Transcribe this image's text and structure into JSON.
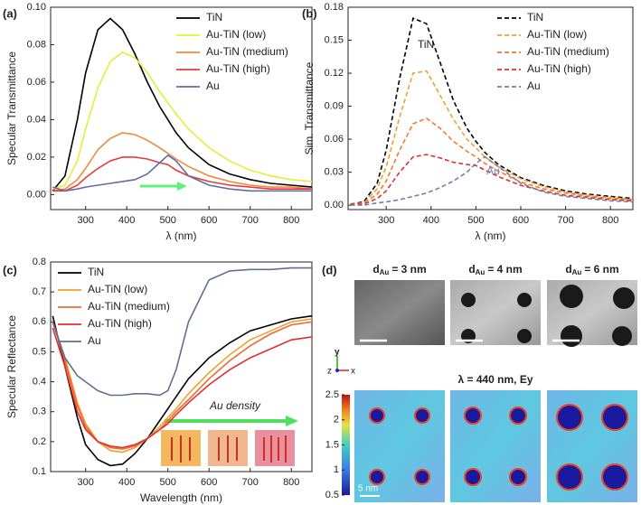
{
  "chart_data": [
    {
      "type": "line",
      "panel_label": "(a)",
      "xlabel": "λ (nm)",
      "ylabel": "Specular Transmittance",
      "line_style": "solid",
      "legend": "upper right",
      "x": [
        220,
        250,
        280,
        300,
        330,
        360,
        390,
        420,
        450,
        480,
        500,
        520,
        550,
        600,
        650,
        700,
        750,
        800,
        850
      ],
      "xlim": [
        215,
        850
      ],
      "xticks": [
        300,
        400,
        500,
        600,
        700,
        800
      ],
      "ylim": [
        -0.008,
        0.1
      ],
      "yticks": [
        {
          "value": 0,
          "label": "0.00"
        },
        0.02,
        0.04,
        0.06,
        0.08,
        {
          "value": 0.1,
          "label": "0.10"
        }
      ],
      "series": [
        {
          "name": "TiN",
          "color": "#000000",
          "values": [
            0.002,
            0.01,
            0.04,
            0.065,
            0.088,
            0.094,
            0.088,
            0.075,
            0.06,
            0.047,
            0.04,
            0.033,
            0.025,
            0.016,
            0.011,
            0.008,
            0.006,
            0.005,
            0.004
          ]
        },
        {
          "name": "Au-TiN (low)",
          "color": "#e4ee3a",
          "values": [
            0.003,
            0.005,
            0.018,
            0.035,
            0.057,
            0.071,
            0.076,
            0.073,
            0.065,
            0.055,
            0.049,
            0.043,
            0.035,
            0.025,
            0.018,
            0.013,
            0.01,
            0.008,
            0.007
          ]
        },
        {
          "name": "Au-TiN (medium)",
          "color": "#f08a3c",
          "values": [
            0.002,
            0.003,
            0.008,
            0.014,
            0.024,
            0.03,
            0.033,
            0.032,
            0.029,
            0.025,
            0.022,
            0.019,
            0.015,
            0.01,
            0.007,
            0.005,
            0.004,
            0.004,
            0.003
          ]
        },
        {
          "name": "Au-TiN (high)",
          "color": "#e83a3a",
          "values": [
            0.002,
            0.002,
            0.005,
            0.009,
            0.014,
            0.018,
            0.02,
            0.02,
            0.019,
            0.017,
            0.016,
            0.013,
            0.01,
            0.007,
            0.005,
            0.004,
            0.003,
            0.003,
            0.003
          ]
        },
        {
          "name": "Au",
          "color": "#5f6f9f",
          "values": [
            0.004,
            0.002,
            0.003,
            0.004,
            0.005,
            0.006,
            0.007,
            0.008,
            0.011,
            0.017,
            0.021,
            0.018,
            0.01,
            0.005,
            0.003,
            0.002,
            0.002,
            0.002,
            0.002
          ]
        }
      ]
    },
    {
      "type": "line",
      "panel_label": "(b)",
      "xlabel": "λ (nm)",
      "ylabel": "Sim. Transmittance",
      "line_style": "dashed",
      "legend": "upper right",
      "annotations": [
        "TiN",
        "Au"
      ],
      "x": [
        220,
        250,
        280,
        300,
        330,
        360,
        390,
        420,
        450,
        480,
        500,
        520,
        550,
        600,
        650,
        700,
        750,
        800,
        850
      ],
      "xlim": [
        215,
        850
      ],
      "xticks": [
        300,
        400,
        500,
        600,
        700,
        800
      ],
      "ylim": [
        -0.004,
        0.18
      ],
      "yticks": [
        {
          "value": 0,
          "label": "0.00"
        },
        0.03,
        0.06,
        0.09,
        0.12,
        0.15,
        0.18
      ],
      "series": [
        {
          "name": "TiN",
          "color": "#000000",
          "values": [
            0.001,
            0.003,
            0.02,
            0.05,
            0.115,
            0.17,
            0.165,
            0.13,
            0.095,
            0.07,
            0.058,
            0.048,
            0.037,
            0.025,
            0.018,
            0.013,
            0.01,
            0.008,
            0.006
          ]
        },
        {
          "name": "Au-TiN (low)",
          "color": "#f0a030",
          "values": [
            0.001,
            0.002,
            0.015,
            0.035,
            0.08,
            0.12,
            0.122,
            0.1,
            0.078,
            0.06,
            0.052,
            0.044,
            0.035,
            0.024,
            0.017,
            0.012,
            0.009,
            0.007,
            0.005
          ]
        },
        {
          "name": "Au-TiN (medium)",
          "color": "#f07a30",
          "values": [
            0.001,
            0.002,
            0.01,
            0.022,
            0.05,
            0.074,
            0.079,
            0.07,
            0.058,
            0.049,
            0.044,
            0.038,
            0.031,
            0.021,
            0.015,
            0.011,
            0.008,
            0.006,
            0.005
          ]
        },
        {
          "name": "Au-TiN (high)",
          "color": "#e03030",
          "values": [
            0.001,
            0.001,
            0.006,
            0.013,
            0.03,
            0.044,
            0.046,
            0.043,
            0.039,
            0.037,
            0.036,
            0.032,
            0.026,
            0.018,
            0.013,
            0.009,
            0.007,
            0.005,
            0.004
          ]
        },
        {
          "name": "Au",
          "color": "#7080b0",
          "values": [
            0,
            0,
            0.002,
            0.003,
            0.005,
            0.008,
            0.011,
            0.016,
            0.022,
            0.03,
            0.038,
            0.044,
            0.035,
            0.02,
            0.012,
            0.008,
            0.006,
            0.004,
            0.003
          ]
        }
      ]
    },
    {
      "type": "line",
      "panel_label": "(c)",
      "xlabel": "Wavelength (nm)",
      "ylabel": "Specular Reflectance",
      "line_style": "solid",
      "legend": "upper left",
      "annotations": [
        "Au density"
      ],
      "x": [
        220,
        250,
        280,
        300,
        330,
        360,
        390,
        420,
        450,
        480,
        500,
        520,
        550,
        600,
        650,
        700,
        750,
        800,
        850
      ],
      "xlim": [
        215,
        850
      ],
      "xticks": [
        300,
        400,
        500,
        600,
        700,
        800
      ],
      "ylim": [
        0.1,
        0.8
      ],
      "yticks": [
        0.1,
        0.2,
        0.3,
        0.4,
        0.5,
        0.6,
        0.7,
        0.8
      ],
      "series": [
        {
          "name": "TiN",
          "color": "#000000",
          "values": [
            0.62,
            0.45,
            0.28,
            0.19,
            0.14,
            0.12,
            0.125,
            0.16,
            0.21,
            0.27,
            0.31,
            0.35,
            0.41,
            0.48,
            0.53,
            0.57,
            0.59,
            0.61,
            0.62
          ]
        },
        {
          "name": "Au-TiN (low)",
          "color": "#f0a030",
          "values": [
            0.6,
            0.48,
            0.33,
            0.26,
            0.2,
            0.17,
            0.165,
            0.18,
            0.21,
            0.25,
            0.28,
            0.31,
            0.36,
            0.43,
            0.49,
            0.54,
            0.57,
            0.6,
            0.61
          ]
        },
        {
          "name": "Au-TiN (medium)",
          "color": "#f06a30",
          "values": [
            0.6,
            0.47,
            0.32,
            0.25,
            0.2,
            0.18,
            0.175,
            0.185,
            0.21,
            0.24,
            0.27,
            0.3,
            0.34,
            0.41,
            0.47,
            0.52,
            0.56,
            0.59,
            0.6
          ]
        },
        {
          "name": "Au-TiN (high)",
          "color": "#e03030",
          "values": [
            0.58,
            0.45,
            0.3,
            0.24,
            0.2,
            0.185,
            0.18,
            0.19,
            0.21,
            0.24,
            0.26,
            0.29,
            0.33,
            0.39,
            0.44,
            0.48,
            0.51,
            0.54,
            0.55
          ]
        },
        {
          "name": "Au",
          "color": "#607090",
          "values": [
            0.6,
            0.48,
            0.42,
            0.4,
            0.37,
            0.355,
            0.355,
            0.36,
            0.36,
            0.355,
            0.37,
            0.44,
            0.6,
            0.74,
            0.77,
            0.775,
            0.775,
            0.78,
            0.78
          ]
        }
      ]
    }
  ],
  "panel_d": {
    "panel_label": "(d)",
    "images": [
      {
        "symbol": "d",
        "subscript": "Au",
        "text": "= 3 nm"
      },
      {
        "symbol": "d",
        "subscript": "Au",
        "text": "= 4 nm"
      },
      {
        "symbol": "d",
        "subscript": "Au",
        "text": "= 6 nm"
      }
    ],
    "axes": [
      "y",
      "z",
      "x"
    ],
    "field_title": "λ = 440 nm, Ey",
    "scale_bar": "5 nm",
    "colorbar": {
      "clim": [
        0.5,
        2.5
      ],
      "ticks": [
        0.5,
        1,
        1.5,
        2,
        2.5
      ]
    }
  }
}
